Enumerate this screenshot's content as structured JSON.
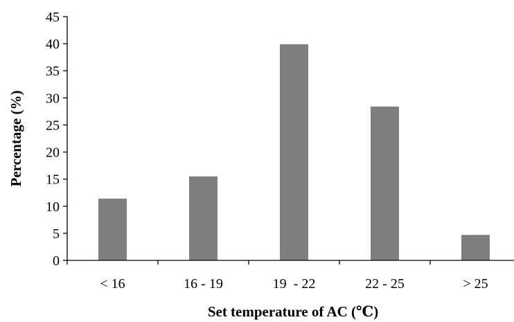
{
  "chart_data": {
    "type": "bar",
    "title": "",
    "xlabel": "Set temperature of AC (℃)",
    "ylabel": "Percentage (%)",
    "categories": [
      "< 16",
      "16 - 19",
      "19  - 22",
      "22 - 25",
      "> 25"
    ],
    "values": [
      11.4,
      15.5,
      39.9,
      28.4,
      4.7
    ],
    "ylim": [
      0,
      45
    ],
    "yticks": [
      0,
      5,
      10,
      15,
      20,
      25,
      30,
      35,
      40,
      45
    ],
    "grid": false,
    "legend": "none",
    "bar_color": "#7f7f7f"
  }
}
